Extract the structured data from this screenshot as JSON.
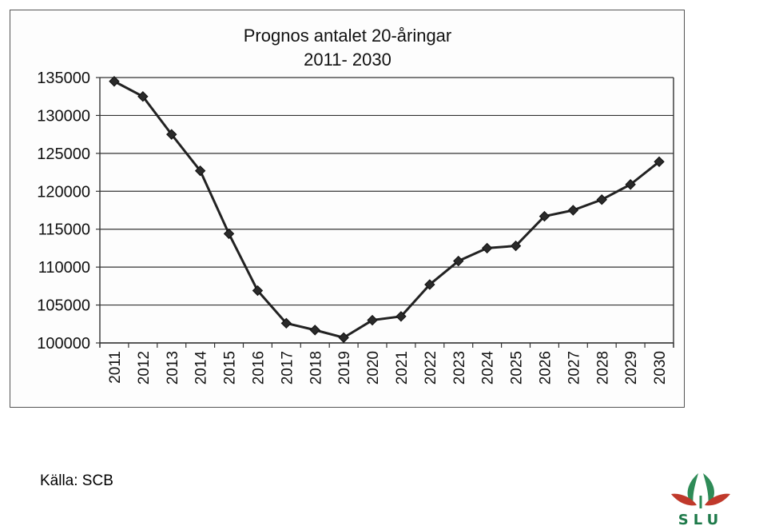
{
  "chart_data": {
    "type": "line",
    "title": "Prognos antalet 20-åringar",
    "subtitle": "2011- 2030",
    "xlabel": "",
    "ylabel": "",
    "categories": [
      "2011",
      "2012",
      "2013",
      "2014",
      "2015",
      "2016",
      "2017",
      "2018",
      "2019",
      "2020",
      "2021",
      "2022",
      "2023",
      "2024",
      "2025",
      "2026",
      "2027",
      "2028",
      "2029",
      "2030"
    ],
    "series": [
      {
        "values": [
          134500,
          132500,
          127500,
          122700,
          114400,
          106900,
          102600,
          101700,
          100700,
          103000,
          103500,
          107700,
          110800,
          112500,
          112800,
          116700,
          117500,
          118900,
          120900,
          123900
        ]
      }
    ],
    "ylim": [
      100000,
      135000
    ],
    "yticks": [
      "100000",
      "105000",
      "110000",
      "115000",
      "120000",
      "125000",
      "130000",
      "135000"
    ],
    "grid": true,
    "marker": "diamond",
    "line_color": "#222222"
  },
  "footer": {
    "source": "Källa: SCB",
    "logo_text": "SLU"
  },
  "colors": {
    "logo_green": "#2e8b57",
    "logo_red": "#c0392b",
    "logo_text": "#1e7a4a"
  }
}
